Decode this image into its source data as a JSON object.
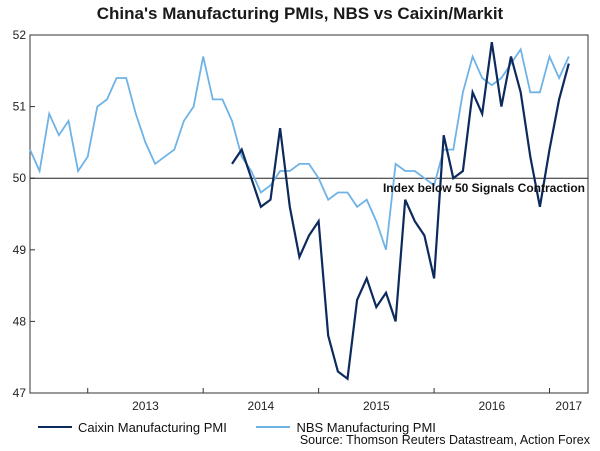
{
  "chart_data": {
    "type": "line",
    "title": "China's Manufacturing PMIs, NBS vs Caixin/Markit",
    "xlabel": "",
    "ylabel": "",
    "ylim": [
      47,
      52
    ],
    "yticks": [
      47,
      48,
      49,
      50,
      51,
      52
    ],
    "xticks": [
      "2013",
      "2014",
      "2015",
      "2016",
      "2017"
    ],
    "reference_line": {
      "y": 50,
      "label": "Index below 50 Signals Contraction"
    },
    "series": [
      {
        "name": "Caixin Manufacturing PMI",
        "color": "#0d2a5c",
        "start": "2014-04",
        "values": [
          50.2,
          50.4,
          50.0,
          49.6,
          49.7,
          50.7,
          49.6,
          48.9,
          49.2,
          49.4,
          47.8,
          47.3,
          47.2,
          48.3,
          48.6,
          48.2,
          48.4,
          48.0,
          49.7,
          49.4,
          49.2,
          48.6,
          50.6,
          50.0,
          50.1,
          51.2,
          50.9,
          51.9,
          51.0,
          51.7,
          51.2,
          50.3,
          49.6,
          50.4,
          51.1,
          51.6
        ]
      },
      {
        "name": "NBS Manufacturing PMI",
        "color": "#6fb3e6",
        "start": "2012-07",
        "values": [
          50.4,
          50.1,
          50.9,
          50.6,
          50.8,
          50.1,
          50.3,
          51.0,
          51.1,
          51.4,
          51.4,
          50.9,
          50.5,
          50.2,
          50.3,
          50.4,
          50.8,
          51.0,
          51.7,
          51.1,
          51.1,
          50.8,
          50.3,
          50.1,
          49.8,
          49.9,
          50.1,
          50.1,
          50.2,
          50.2,
          50.0,
          49.7,
          49.8,
          49.8,
          49.6,
          49.7,
          49.4,
          49.0,
          50.2,
          50.1,
          50.1,
          50.0,
          49.9,
          50.4,
          50.4,
          51.2,
          51.7,
          51.4,
          51.3,
          51.4,
          51.6,
          51.8,
          51.2,
          51.2,
          51.7,
          51.4,
          51.7
        ]
      }
    ],
    "legend_position": "bottom-left",
    "source": "Source: Thomson Reuters Datastream, Action Forex"
  }
}
